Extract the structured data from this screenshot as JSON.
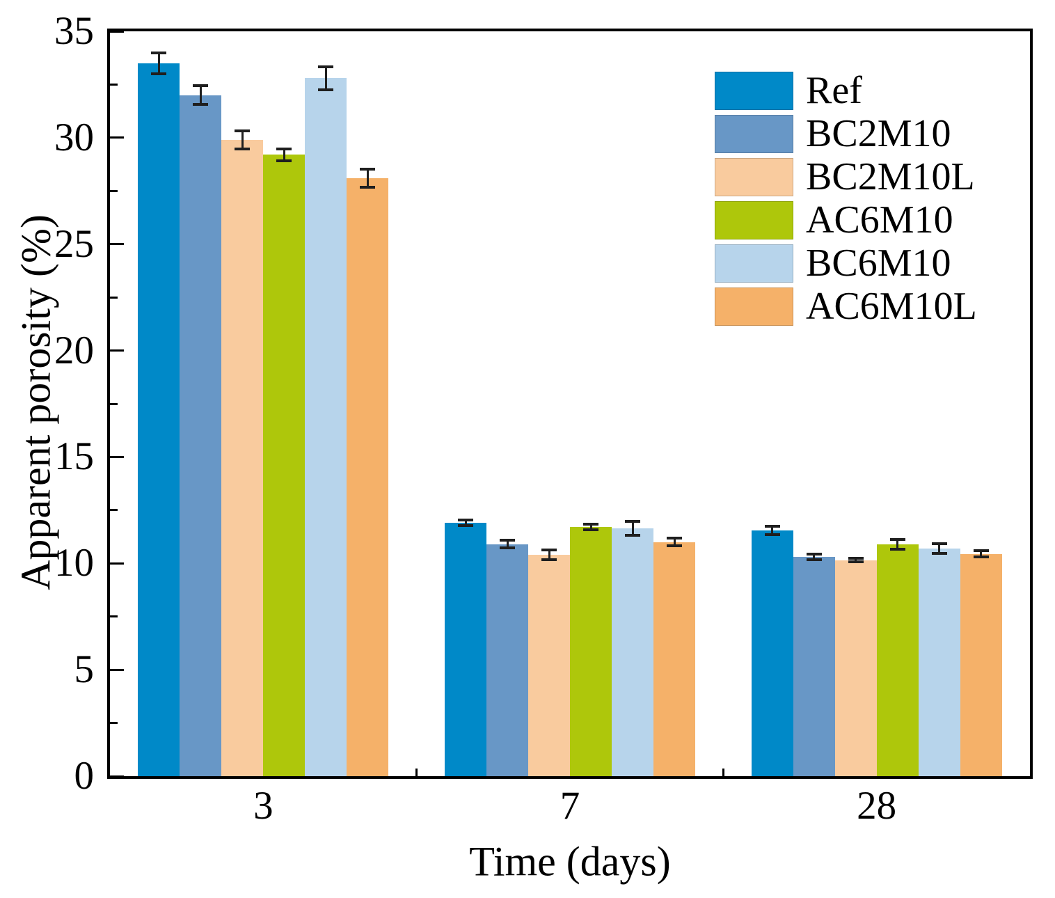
{
  "chart_data": {
    "type": "bar",
    "title": "",
    "xlabel": "Time (days)",
    "ylabel": "Apparent porosity (%)",
    "categories": [
      "3",
      "7",
      "28"
    ],
    "x_axis_unit": "days",
    "y_ticks": [
      0,
      5,
      10,
      15,
      20,
      25,
      30,
      35
    ],
    "y_minor_ticks": [
      2.5,
      7.5,
      12.5,
      17.5,
      22.5,
      27.5,
      32.5
    ],
    "ylim": [
      0,
      35
    ],
    "grid": false,
    "legend_position": "upper-right-inside",
    "error_bars": true,
    "series": [
      {
        "name": "Ref",
        "color": "#0089C8",
        "values": [
          33.5,
          11.9,
          11.55
        ],
        "errors": [
          0.55,
          0.2,
          0.25
        ]
      },
      {
        "name": "BC2M10",
        "color": "#6897C6",
        "values": [
          32.0,
          10.9,
          10.3
        ],
        "errors": [
          0.5,
          0.25,
          0.2
        ]
      },
      {
        "name": "BC2M10L",
        "color": "#F9CB9E",
        "values": [
          29.9,
          10.4,
          10.15
        ],
        "errors": [
          0.5,
          0.3,
          0.15
        ]
      },
      {
        "name": "AC6M10",
        "color": "#AEC70B",
        "values": [
          29.2,
          11.7,
          10.9
        ],
        "errors": [
          0.35,
          0.2,
          0.3
        ]
      },
      {
        "name": "BC6M10",
        "color": "#B7D4EB",
        "values": [
          32.8,
          11.65,
          10.7
        ],
        "errors": [
          0.6,
          0.4,
          0.3
        ]
      },
      {
        "name": "AC6M10L",
        "color": "#F5B169",
        "values": [
          28.1,
          11.0,
          10.45
        ],
        "errors": [
          0.5,
          0.25,
          0.2
        ]
      }
    ]
  }
}
